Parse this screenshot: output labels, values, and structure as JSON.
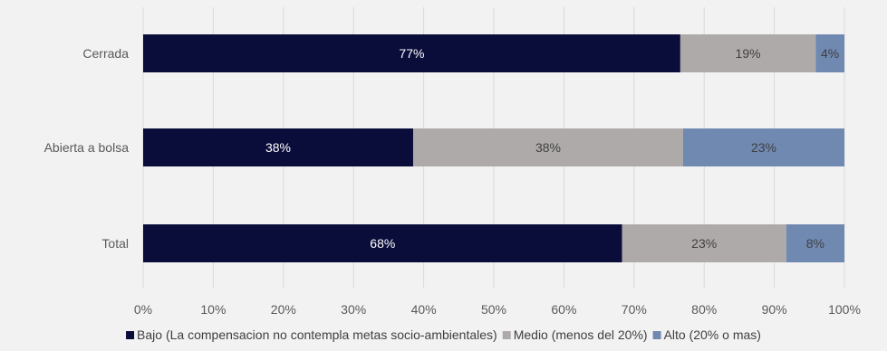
{
  "chart_data": {
    "type": "bar",
    "orientation": "horizontal",
    "stacked": true,
    "categories": [
      "Cerrada",
      "Abierta a bolsa",
      "Total"
    ],
    "series": [
      {
        "name": "Bajo (La compensacion no contempla metas socio-ambientales)",
        "color": "#0a0c3a",
        "label_color": "#ffffff",
        "values": [
          0.766,
          0.385,
          0.683
        ],
        "labels": [
          "77%",
          "38%",
          "68%"
        ]
      },
      {
        "name": "Medio (menos del 20%)",
        "color": "#afaaaa",
        "label_color": "#404040",
        "values": [
          0.193,
          0.385,
          0.234
        ],
        "labels": [
          "19%",
          "38%",
          "23%"
        ]
      },
      {
        "name": "Alto (20% o mas)",
        "color": "#7089b1",
        "label_color": "#404040",
        "values": [
          0.041,
          0.23,
          0.083
        ],
        "labels": [
          "4%",
          "23%",
          "8%"
        ]
      }
    ],
    "xlim": [
      0,
      1
    ],
    "xticks": [
      "0%",
      "10%",
      "20%",
      "30%",
      "40%",
      "50%",
      "60%",
      "70%",
      "80%",
      "90%",
      "100%"
    ],
    "grid": true,
    "legend_position": "bottom"
  }
}
